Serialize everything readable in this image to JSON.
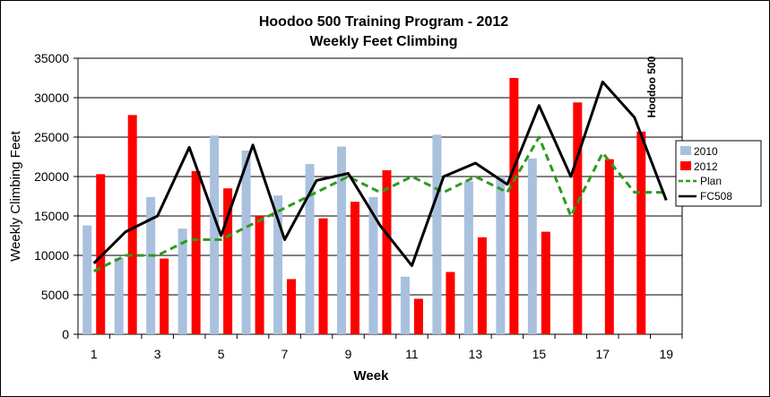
{
  "chart_data": {
    "type": "bar",
    "title": "Hoodoo 500 Training Program - 2012",
    "subtitle": "Weekly Feet Climbing",
    "xlabel": "Week",
    "ylabel": "Weekly Climbing Feet",
    "x_tick_labels": [
      "1",
      "3",
      "5",
      "7",
      "9",
      "11",
      "13",
      "15",
      "17",
      "19"
    ],
    "categories": [
      1,
      2,
      3,
      4,
      5,
      6,
      7,
      8,
      9,
      10,
      11,
      12,
      13,
      14,
      15,
      16,
      17,
      18,
      19
    ],
    "ylim": [
      0,
      35000
    ],
    "yticks": [
      0,
      5000,
      10000,
      15000,
      20000,
      25000,
      30000,
      35000
    ],
    "grid": true,
    "legend_position": "right",
    "vertical_annotation": {
      "text": "Hoodoo 500",
      "x": 18.65
    },
    "series": [
      {
        "name": "2010",
        "type": "bar",
        "color": "#a9c1de",
        "values": [
          13800,
          9700,
          17400,
          13400,
          25200,
          23300,
          17600,
          21600,
          23800,
          17400,
          7300,
          25300,
          19400,
          20000,
          22300,
          null,
          null,
          null,
          null
        ]
      },
      {
        "name": "2012",
        "type": "bar",
        "color": "#ff0000",
        "values": [
          20300,
          27800,
          9600,
          20700,
          18500,
          15000,
          7000,
          14700,
          16800,
          20800,
          4500,
          7900,
          12300,
          32500,
          13000,
          29400,
          22200,
          25700,
          null
        ]
      },
      {
        "name": "Plan",
        "type": "line",
        "color": "#2e9a1e",
        "dashed": true,
        "values": [
          8000,
          10000,
          10000,
          12000,
          12000,
          14000,
          16000,
          18000,
          20000,
          18000,
          20000,
          18000,
          20000,
          18000,
          25000,
          15000,
          23000,
          18000,
          18000
        ]
      },
      {
        "name": "FC508",
        "type": "line",
        "color": "#000000",
        "values": [
          9000,
          13000,
          15000,
          23700,
          12500,
          24000,
          12000,
          19500,
          20400,
          13800,
          8700,
          20000,
          21700,
          19000,
          29000,
          20000,
          32000,
          27500,
          17000
        ]
      }
    ]
  }
}
